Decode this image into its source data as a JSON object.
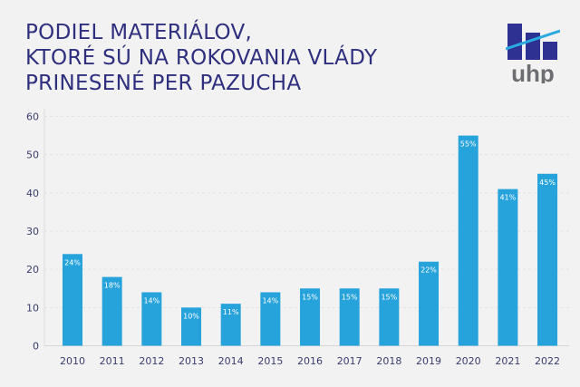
{
  "chart_data": {
    "type": "bar",
    "title_lines": [
      "PODIEL MATERIÁLOV,",
      "KTORÉ SÚ NA ROKOVANIA VLÁDY",
      "PRINESENÉ PER PAZUCHA"
    ],
    "categories": [
      "2010",
      "2011",
      "2012",
      "2013",
      "2014",
      "2015",
      "2016",
      "2017",
      "2018",
      "2019",
      "2020",
      "2021",
      "2022"
    ],
    "values": [
      24,
      18,
      14,
      10,
      11,
      14,
      15,
      15,
      15,
      22,
      55,
      41,
      45
    ],
    "data_labels": [
      "24%",
      "18%",
      "14%",
      "10%",
      "11%",
      "14%",
      "15%",
      "15%",
      "15%",
      "22%",
      "55%",
      "41%",
      "45%"
    ],
    "yticks": [
      0,
      10,
      20,
      30,
      40,
      50,
      60
    ],
    "ylim": [
      0,
      60
    ],
    "grid": true,
    "xlabel": "",
    "ylabel": "",
    "colors": {
      "bar": "#27a3dc",
      "title": "#2e2f7e",
      "logo_bars": "#2e3192",
      "logo_line": "#29abe2",
      "logo_text": "#6d6e71"
    }
  },
  "logo": {
    "text": "uhp"
  }
}
